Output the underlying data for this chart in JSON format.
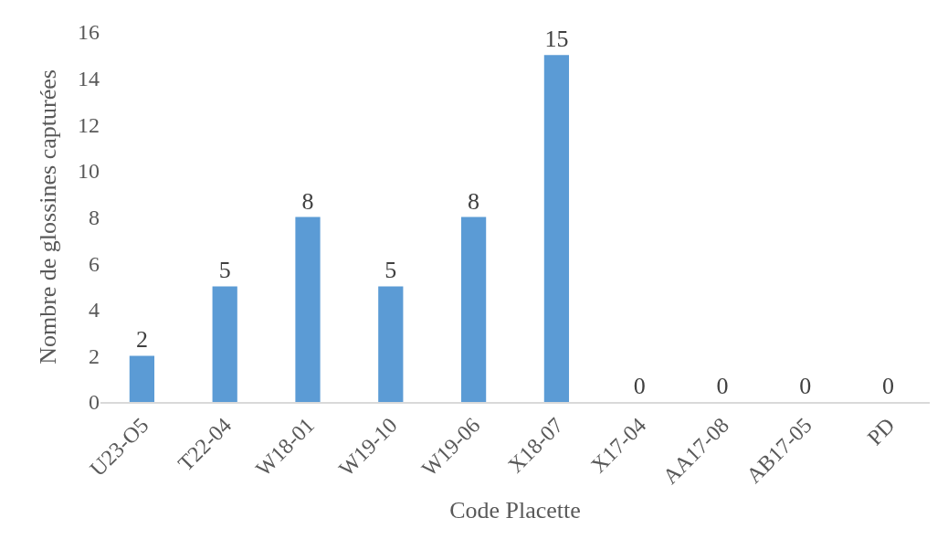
{
  "chart_data": {
    "type": "bar",
    "xlabel": "Code Placette",
    "ylabel": "Nombre de glossines capturées",
    "categories": [
      "U23-O5",
      "T22-04",
      "W18-01",
      "W19-10",
      "W19-06",
      "X18-07",
      "X17-04",
      "AA17-08",
      "AB17-05",
      "PD"
    ],
    "values": [
      2,
      5,
      8,
      5,
      8,
      15,
      0,
      0,
      0,
      0
    ],
    "color": "#5b9bd5",
    "data_labels": true,
    "ylim": [
      0,
      16
    ],
    "yticks": [
      0,
      2,
      4,
      6,
      8,
      10,
      12,
      14,
      16
    ],
    "grid": false
  }
}
